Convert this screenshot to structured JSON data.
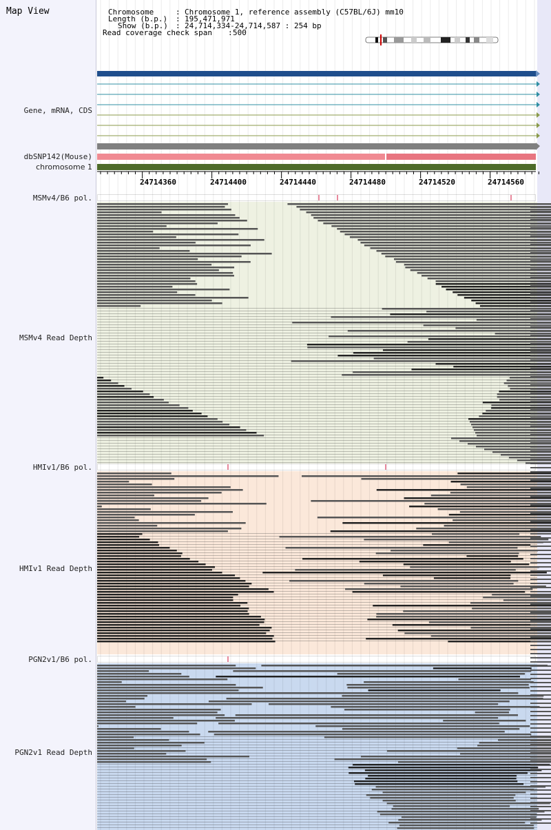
{
  "title": "Map View",
  "info": {
    "chromosome_label": "Chromosome",
    "chromosome_value": "Chromosome 1, reference assembly (C57BL/6J) mm10",
    "length_label": "Length (b.p.)",
    "length_value": "195,471,971",
    "show_label": "Show (b.p.)",
    "show_value": "24,714,334-24,714,587 : 254 bp",
    "span_label": "Read coverage check span",
    "span_value": "500"
  },
  "tracks": {
    "gene": "Gene, mRNA, CDS",
    "snp": "dbSNP142(Mouse)",
    "chromosome": "chromosome 1"
  },
  "axis": {
    "ticks": [
      "24714360",
      "24714400",
      "24714440",
      "24714480",
      "24714520",
      "24714560"
    ]
  },
  "samples": [
    {
      "pol": "MSMv4/B6 pol.",
      "depth": "MSMv4 Read Depth",
      "color": "#eef1e2"
    },
    {
      "pol": "HMIv1/B6 pol.",
      "depth": "HMIv1 Read Depth",
      "color": "#fbe8da"
    },
    {
      "pol": "PGN2v1/B6 pol.",
      "depth": "PGN2v1 Read Depth",
      "color": "#c9d9ef"
    }
  ],
  "colors": {
    "gene_main": "#1f4e8c",
    "gene_teal": "#2f8fa3",
    "gene_olive": "#8a9a4a",
    "gene_gray": "#808080",
    "snp_pink": "#f08a92",
    "chrom_green": "#4d6b2a",
    "read": "#555555",
    "read_dark": "#222222",
    "snp_mark": "#d0103a"
  }
}
